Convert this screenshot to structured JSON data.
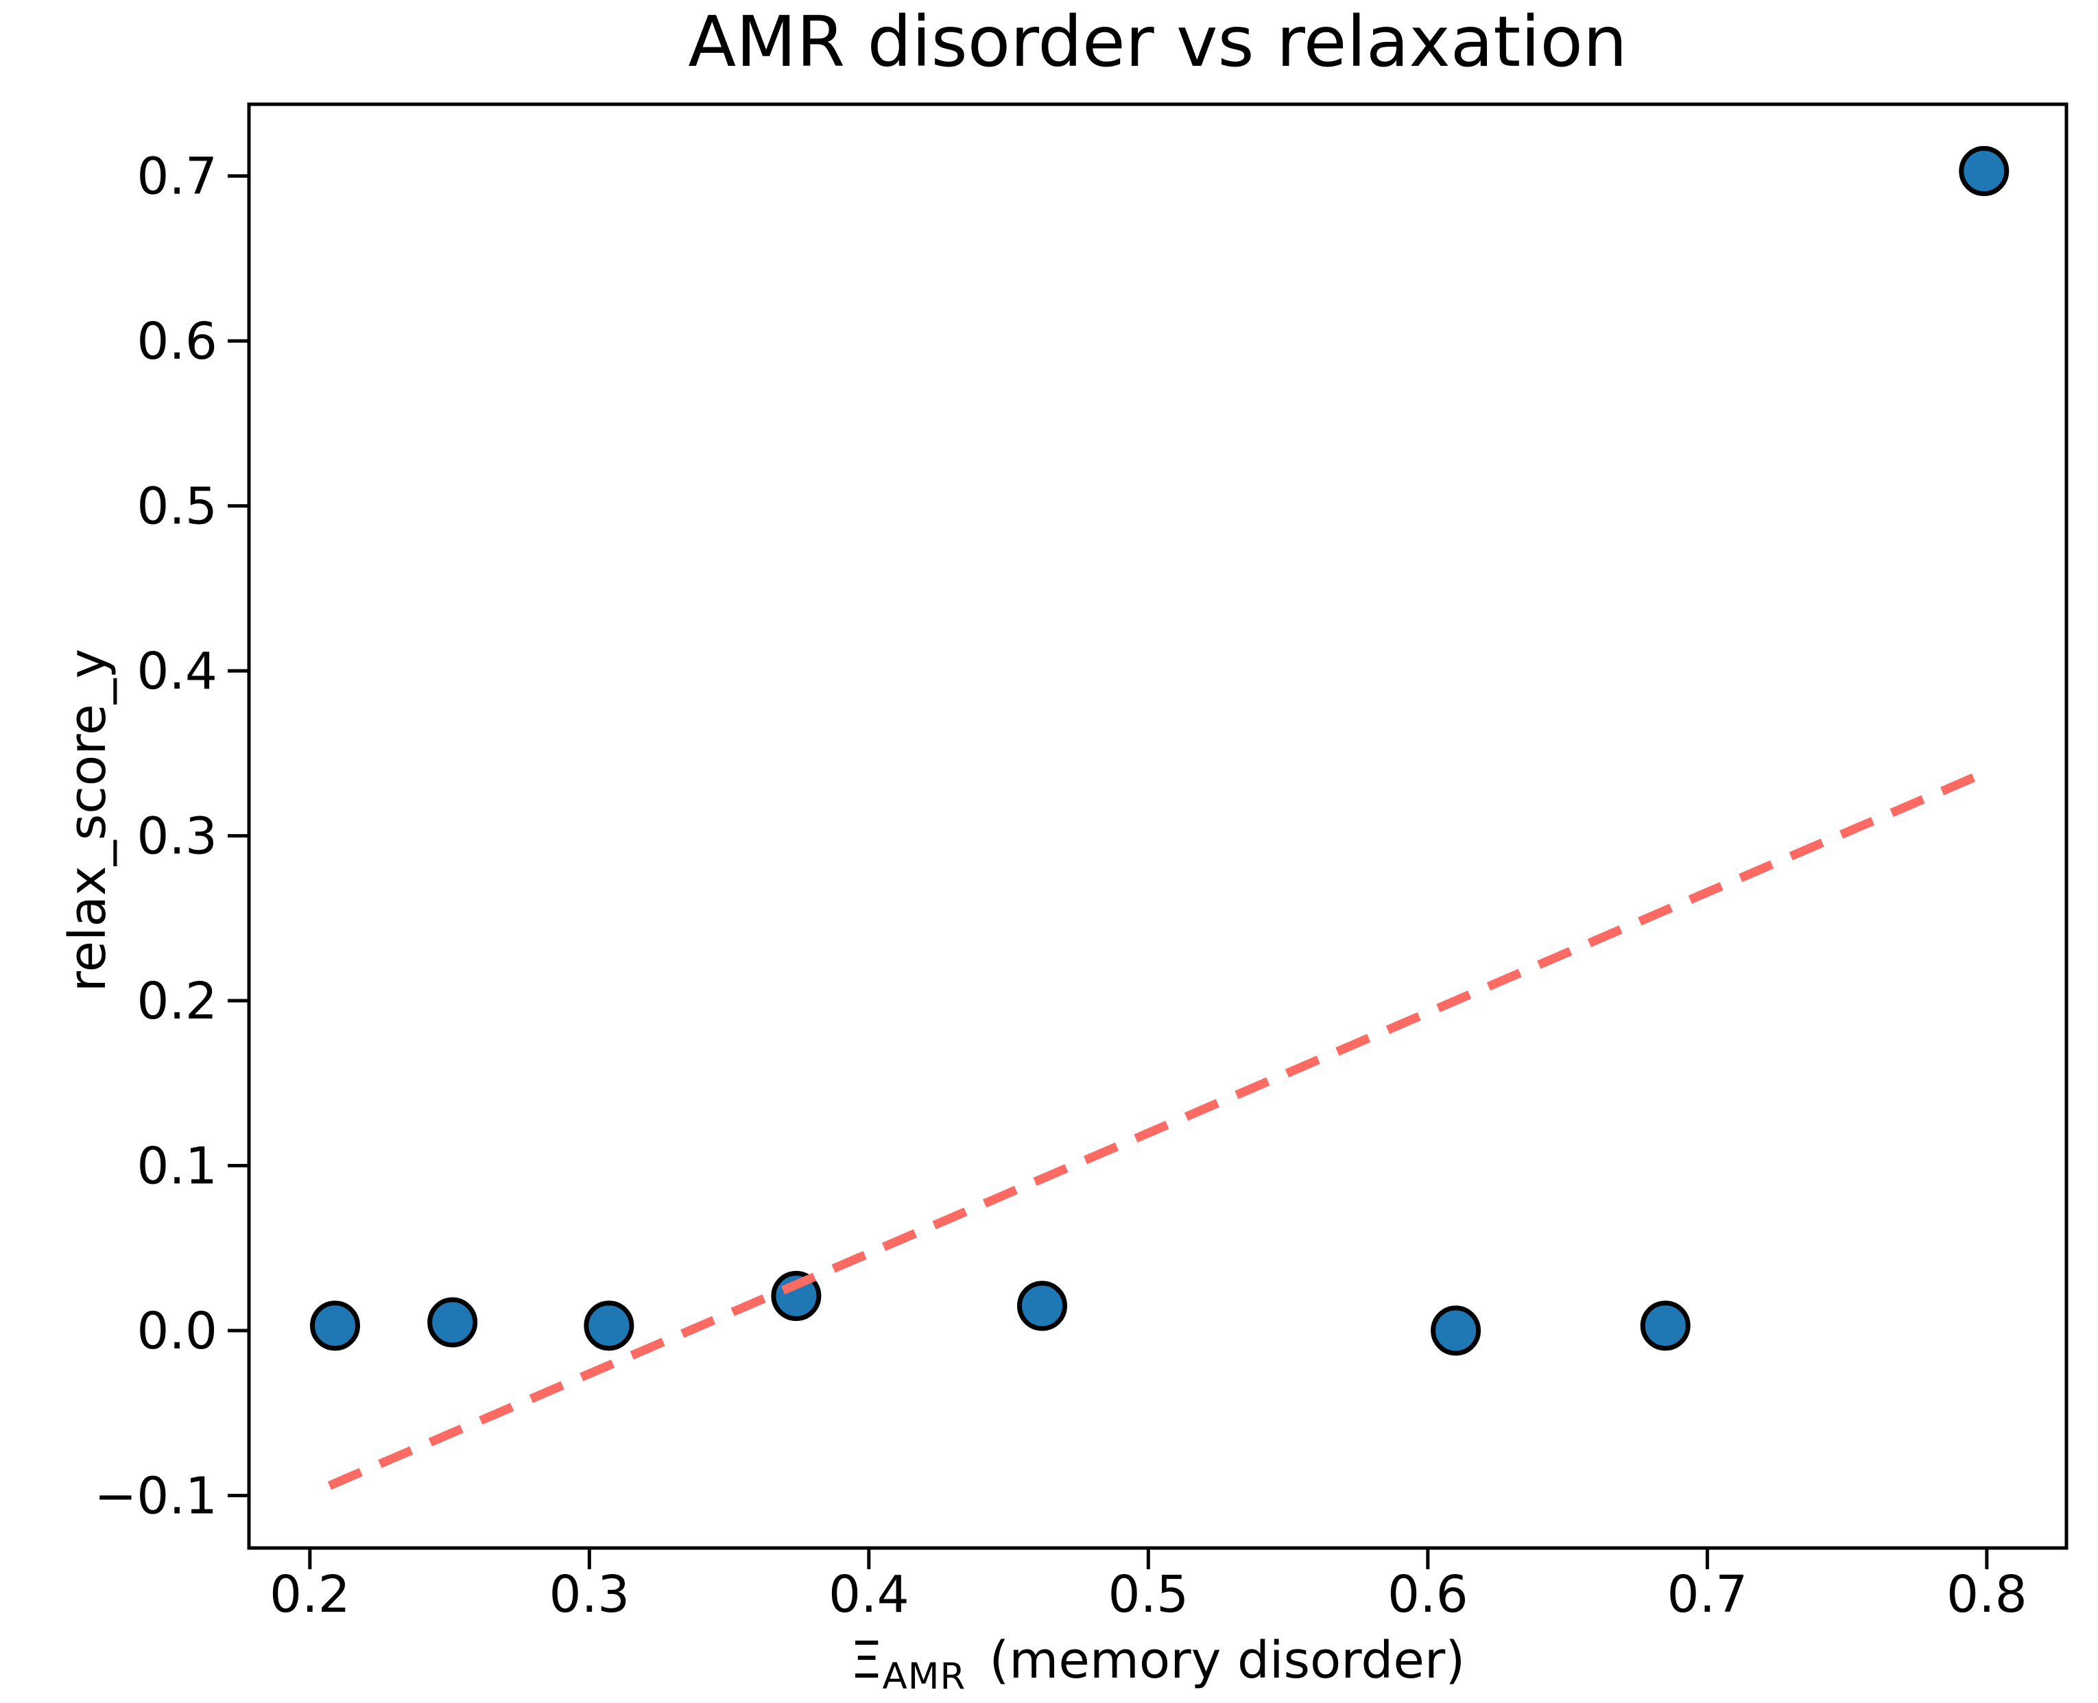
{
  "chart_data": {
    "type": "scatter",
    "title": "AMR disorder vs relaxation",
    "xlabel_symbol": "Ξ",
    "xlabel_subscript": "AMR",
    "xlabel_suffix": "(memory disorder)",
    "ylabel": "relax_score_y",
    "xlim": [
      0.1782,
      0.8285
    ],
    "ylim": [
      -0.1318,
      0.7435
    ],
    "x_ticks": [
      {
        "value": 0.2,
        "label": "0.2"
      },
      {
        "value": 0.3,
        "label": "0.3"
      },
      {
        "value": 0.4,
        "label": "0.4"
      },
      {
        "value": 0.5,
        "label": "0.5"
      },
      {
        "value": 0.6,
        "label": "0.6"
      },
      {
        "value": 0.7,
        "label": "0.7"
      },
      {
        "value": 0.8,
        "label": "0.8"
      }
    ],
    "y_ticks": [
      {
        "value": -0.1,
        "label": "−0.1"
      },
      {
        "value": 0.0,
        "label": "0.0"
      },
      {
        "value": 0.1,
        "label": "0.1"
      },
      {
        "value": 0.2,
        "label": "0.2"
      },
      {
        "value": 0.3,
        "label": "0.3"
      },
      {
        "value": 0.4,
        "label": "0.4"
      },
      {
        "value": 0.5,
        "label": "0.5"
      },
      {
        "value": 0.6,
        "label": "0.6"
      },
      {
        "value": 0.7,
        "label": "0.7"
      }
    ],
    "points": [
      [
        0.209,
        0.003
      ],
      [
        0.251,
        0.005
      ],
      [
        0.307,
        0.003
      ],
      [
        0.374,
        0.021
      ],
      [
        0.462,
        0.015
      ],
      [
        0.61,
        0.0
      ],
      [
        0.685,
        0.003
      ],
      [
        0.799,
        0.703
      ]
    ],
    "trend_line": {
      "x1": 0.207,
      "y1": -0.094,
      "x2": 0.799,
      "y2": 0.338,
      "style": "dashed"
    },
    "colors": {
      "marker_fill": "#1f77b4",
      "marker_edge": "#000000",
      "trend_line": "#fb6b64",
      "axis": "#000000",
      "background": "#ffffff"
    },
    "grid": false,
    "legend": null
  }
}
